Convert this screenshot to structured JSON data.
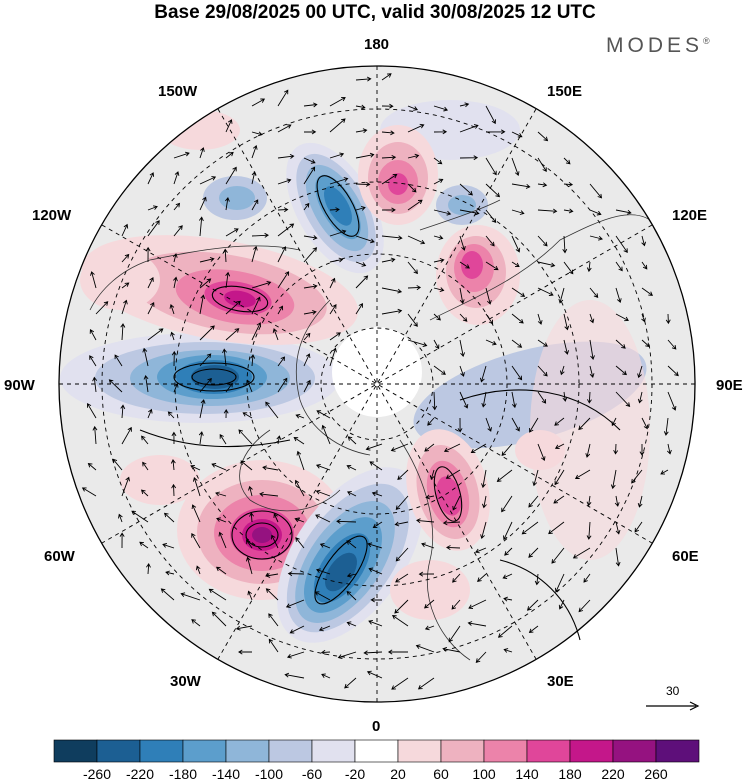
{
  "title": "Base 29/08/2025 00 UTC, valid 30/08/2025 12 UTC",
  "brand": "MODES",
  "brand_mark": "®",
  "longitude_labels": {
    "lon_180": "180",
    "lon_150e": "150E",
    "lon_120e": "120E",
    "lon_90e": "90E",
    "lon_60e": "60E",
    "lon_30e": "30E",
    "lon_0": "0",
    "lon_30w": "30W",
    "lon_60w": "60W",
    "lon_90w": "90W",
    "lon_120w": "120W",
    "lon_150w": "150W"
  },
  "reference_vector": "30",
  "colorbar": {
    "colors": [
      "#0f3d5e",
      "#1c5f93",
      "#2f7fb8",
      "#5c9ecc",
      "#8fb6d9",
      "#bcc8e2",
      "#e1e1ef",
      "#ffffff",
      "#f6d9dc",
      "#eeb2c0",
      "#ec83aa",
      "#e0469a",
      "#c4178a",
      "#951280",
      "#5e0f7a"
    ],
    "labels": [
      "-260",
      "-220",
      "-180",
      "-140",
      "-100",
      "-60",
      "-20",
      "20",
      "60",
      "100",
      "140",
      "180",
      "220",
      "260"
    ]
  },
  "anomaly_centers": [
    {
      "name": "negative-eastern-us",
      "value": -260
    },
    {
      "name": "positive-north-atlantic",
      "value": 260
    },
    {
      "name": "negative-east-atlantic",
      "value": -260
    },
    {
      "name": "positive-scandinavia",
      "value": 220
    },
    {
      "name": "positive-western-canada",
      "value": 200
    },
    {
      "name": "negative-bering",
      "value": -220
    },
    {
      "name": "positive-east-siberia",
      "value": 180
    },
    {
      "name": "negative-central-siberia",
      "value": -140
    }
  ]
}
